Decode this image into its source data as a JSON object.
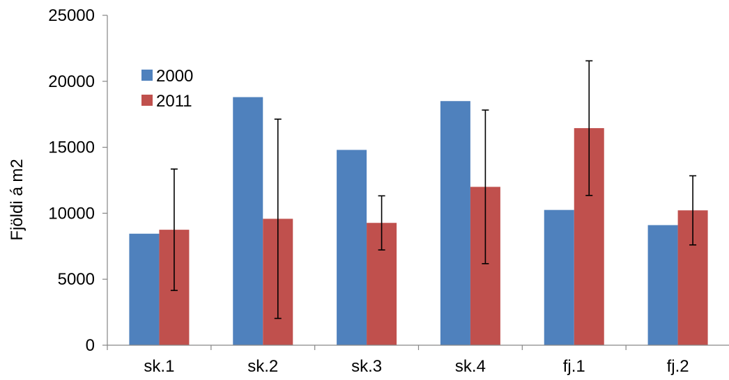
{
  "chart_data": {
    "type": "bar",
    "categories": [
      "sk.1",
      "sk.2",
      "sk.3",
      "sk.4",
      "fj.1",
      "fj.2"
    ],
    "series": [
      {
        "name": "2000",
        "color": "#4f81bd",
        "values": [
          8450,
          18800,
          14800,
          18500,
          10250,
          9100
        ]
      },
      {
        "name": "2011",
        "color": "#c0504d",
        "values": [
          8750,
          9580,
          9270,
          12000,
          16450,
          10220
        ],
        "error": [
          4600,
          7550,
          2050,
          5820,
          5100,
          2620
        ]
      }
    ],
    "title": "",
    "xlabel": "",
    "ylabel": "Fjöldi á m2",
    "ylim": [
      0,
      25000
    ],
    "yticks": [
      0,
      5000,
      10000,
      15000,
      20000,
      25000
    ],
    "grid": false,
    "legend": "top-left"
  }
}
